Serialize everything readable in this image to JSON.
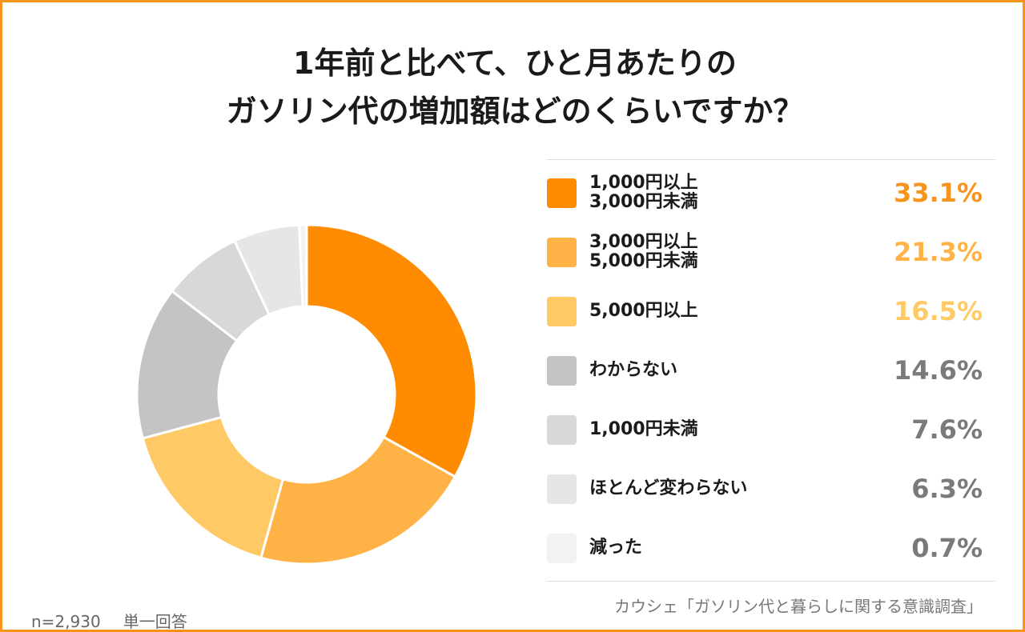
{
  "title": {
    "line1": "1年前と比べて、ひと月あたりの",
    "line2": "ガソリン代の増加額はどのくらいですか？"
  },
  "chart_data": {
    "type": "pie",
    "categories": [
      "1,000円以上3,000円未満",
      "3,000円以上5,000円未満",
      "5,000円以上",
      "わからない",
      "1,000円未満",
      "ほとんど変わらない",
      "減った"
    ],
    "values": [
      33.1,
      21.3,
      16.5,
      14.6,
      7.6,
      6.3,
      0.7
    ],
    "unit": "%",
    "donut": true,
    "legend": "right"
  },
  "legend": [
    {
      "label_lines": [
        "1,000円以上",
        "3,000円未満"
      ],
      "value": "33.1%",
      "color": "#ff8c00",
      "text_color": "#f7941d"
    },
    {
      "label_lines": [
        "3,000円以上",
        "5,000円未満"
      ],
      "value": "21.3%",
      "color": "#ffb347",
      "text_color": "#ffb347"
    },
    {
      "label_lines": [
        "5,000円以上"
      ],
      "value": "16.5%",
      "color": "#ffc966",
      "text_color": "#ffc966"
    },
    {
      "label_lines": [
        "わからない"
      ],
      "value": "14.6%",
      "color": "#c4c4c4",
      "text_color": "#7a7a7a"
    },
    {
      "label_lines": [
        "1,000円未満"
      ],
      "value": "7.6%",
      "color": "#d8d8d8",
      "text_color": "#7a7a7a"
    },
    {
      "label_lines": [
        "ほとんど変わらない"
      ],
      "value": "6.3%",
      "color": "#e6e6e6",
      "text_color": "#7a7a7a"
    },
    {
      "label_lines": [
        "減った"
      ],
      "value": "0.7%",
      "color": "#f2f2f2",
      "text_color": "#7a7a7a"
    }
  ],
  "footer": {
    "sample": "n=2,930",
    "answer_type": "単一回答",
    "source": "カウシェ「ガソリン代と暮らしに関する意識調査」"
  }
}
